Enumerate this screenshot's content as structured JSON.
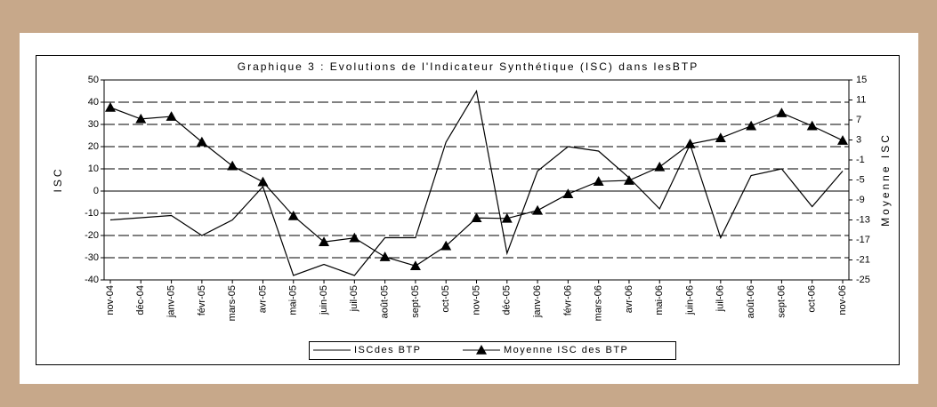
{
  "chart_data": {
    "type": "line",
    "title": "Graphique 3 : Evolutions de l'Indicateur Synthétique (ISC) dans lesBTP",
    "y_label": "ISC",
    "y2_label": "Moyenne ISC",
    "categories": [
      "nov-04",
      "déc-04",
      "janv-05",
      "févr-05",
      "mars-05",
      "avr-05",
      "mai-05",
      "juin-05",
      "juil-05",
      "août-05",
      "sept-05",
      "oct-05",
      "nov-05",
      "déc-05",
      "janv-06",
      "févr-06",
      "mars-06",
      "avr-06",
      "mai-06",
      "juin-06",
      "juil-06",
      "août-06",
      "sept-06",
      "oct-06",
      "nov-06"
    ],
    "series": [
      {
        "name": "ISCdes BTP",
        "color": "#000000",
        "marker": "none",
        "values": [
          -13,
          -12,
          -11,
          -20,
          -13,
          2,
          -38,
          -33,
          -38,
          -21,
          -21,
          22,
          45,
          -28,
          9,
          20,
          18,
          6,
          -8,
          21,
          -21,
          7,
          10,
          -7,
          9
        ]
      },
      {
        "name": "Moyenne ISC des BTP",
        "color": "#000000",
        "marker": "triangle",
        "axis": "y2",
        "values": [
          9.5,
          7.2,
          7.7,
          2.6,
          -2.2,
          -5.4,
          -12.2,
          -17.4,
          -16.6,
          -20.4,
          -22.2,
          -18.2,
          -12.6,
          -12.7,
          -11.1,
          -7.8,
          -5.3,
          -5.1,
          -2.4,
          2.2,
          3.4,
          5.8,
          8.4,
          5.8,
          2.9
        ]
      }
    ],
    "ylim": [
      -40,
      50
    ],
    "yticks": [
      -40,
      -30,
      -20,
      -10,
      0,
      10,
      20,
      30,
      40,
      50
    ],
    "y2lim": [
      -25,
      15
    ],
    "y2ticks": [
      -25,
      -21,
      -17,
      -13,
      -9,
      -5,
      -1,
      3,
      7,
      11,
      15
    ],
    "grid": true,
    "legend": "bottom"
  }
}
